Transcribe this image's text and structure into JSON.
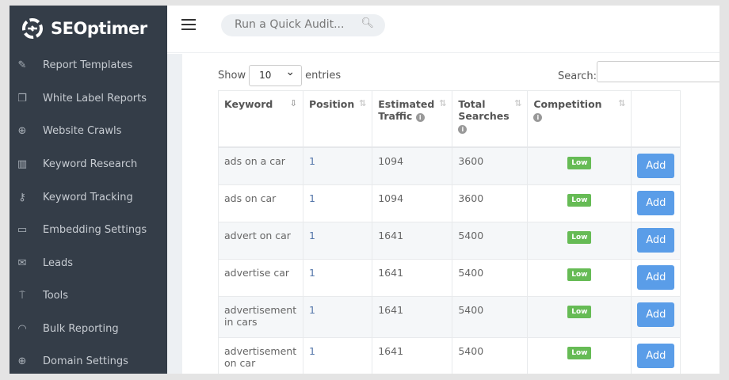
{
  "brand": {
    "name": "SEOptimer"
  },
  "sidebar": {
    "items": [
      {
        "label": "Report Templates",
        "icon": "edit-icon",
        "glyph": "✎"
      },
      {
        "label": "White Label Reports",
        "icon": "copy-icon",
        "glyph": "❐"
      },
      {
        "label": "Website Crawls",
        "icon": "zoom-in-icon",
        "glyph": "⊕"
      },
      {
        "label": "Keyword Research",
        "icon": "bar-chart-icon",
        "glyph": "▥"
      },
      {
        "label": "Keyword Tracking",
        "icon": "key-icon",
        "glyph": "⚷"
      },
      {
        "label": "Embedding Settings",
        "icon": "embed-icon",
        "glyph": "▭"
      },
      {
        "label": "Leads",
        "icon": "envelope-icon",
        "glyph": "✉"
      },
      {
        "label": "Tools",
        "icon": "hammer-icon",
        "glyph": "⍑"
      },
      {
        "label": "Bulk Reporting",
        "icon": "dashboard-icon",
        "glyph": "◠"
      },
      {
        "label": "Domain Settings",
        "icon": "globe-icon",
        "glyph": "⊕"
      }
    ]
  },
  "topbar": {
    "audit_placeholder": "Run a Quick Audit..."
  },
  "table_controls": {
    "show_label": "Show",
    "entries_value": "10",
    "entries_label": "entries",
    "search_label": "Search:",
    "search_value": ""
  },
  "table": {
    "headers": [
      "Keyword",
      "Position",
      "Estimated Traffic",
      "Total Searches",
      "Competition",
      ""
    ],
    "rows": [
      {
        "keyword": "ads on a car",
        "position": "1",
        "traffic": "1094",
        "searches": "3600",
        "competition": "Low",
        "action": "Add"
      },
      {
        "keyword": "ads on car",
        "position": "1",
        "traffic": "1094",
        "searches": "3600",
        "competition": "Low",
        "action": "Add"
      },
      {
        "keyword": "advert on car",
        "position": "1",
        "traffic": "1641",
        "searches": "5400",
        "competition": "Low",
        "action": "Add"
      },
      {
        "keyword": "advertise car",
        "position": "1",
        "traffic": "1641",
        "searches": "5400",
        "competition": "Low",
        "action": "Add"
      },
      {
        "keyword": "advertisement in cars",
        "position": "1",
        "traffic": "1641",
        "searches": "5400",
        "competition": "Low",
        "action": "Add"
      },
      {
        "keyword": "advertisement on car",
        "position": "1",
        "traffic": "1641",
        "searches": "5400",
        "competition": "Low",
        "action": "Add"
      }
    ]
  },
  "colors": {
    "sidebar": "#343d48",
    "add_button": "#5a9de8",
    "badge_low": "#66bb55"
  }
}
